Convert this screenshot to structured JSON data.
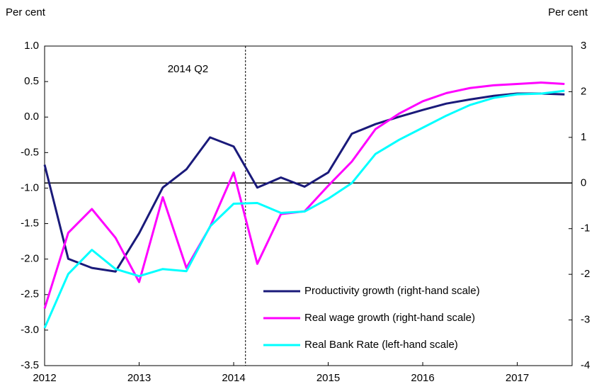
{
  "chart_data": {
    "type": "line",
    "y_label": "Per cent",
    "y2_label": "Per cent",
    "x": [
      2012,
      2012.25,
      2012.5,
      2012.75,
      2013,
      2013.25,
      2013.5,
      2013.75,
      2014,
      2014.25,
      2014.5,
      2014.75,
      2015,
      2015.25,
      2015.5,
      2015.75,
      2016,
      2016.25,
      2016.5,
      2016.75,
      2017,
      2017.25,
      2017.5
    ],
    "xlim": [
      2012,
      2017.58
    ],
    "xticks": [
      2012,
      2013,
      2014,
      2015,
      2016,
      2017
    ],
    "ylim": [
      -3.5,
      1.0
    ],
    "yticks": [
      {
        "value": 1.0,
        "label": "1.0"
      },
      0.5,
      {
        "value": 0.0,
        "label": "0.0"
      },
      -0.5,
      {
        "value": -1.0,
        "label": "-1.0"
      },
      -1.5,
      {
        "value": -2.0,
        "label": "-2.0"
      },
      -2.5,
      {
        "value": -3.0,
        "label": "-3.0"
      },
      -3.5
    ],
    "y2lim": [
      -4,
      3
    ],
    "y2ticks": [
      3,
      2,
      1,
      0,
      -1,
      -2,
      -3,
      -4
    ],
    "zero_line_axis": "y2",
    "vline": {
      "x": 2014.125,
      "label": "2014 Q2"
    },
    "legend": "lower right",
    "series": [
      {
        "name": "Productivity growth (right-hand scale)",
        "color": "#1a1a7a",
        "axis": "y2",
        "values": [
          0.4,
          -1.66,
          -1.86,
          -1.94,
          -1.1,
          -0.1,
          0.3,
          1.0,
          0.8,
          -0.1,
          0.12,
          -0.08,
          0.23,
          1.08,
          1.29,
          1.45,
          1.6,
          1.74,
          1.83,
          1.91,
          1.96,
          1.96,
          1.94
        ]
      },
      {
        "name": "Real wage growth (right-hand scale)",
        "color": "#ff00ff",
        "axis": "y2",
        "values": [
          -2.75,
          -1.09,
          -0.57,
          -1.2,
          -2.17,
          -0.31,
          -1.86,
          -0.96,
          0.23,
          -1.77,
          -0.68,
          -0.62,
          -0.06,
          0.47,
          1.18,
          1.52,
          1.79,
          1.97,
          2.08,
          2.14,
          2.17,
          2.2,
          2.17
        ]
      },
      {
        "name": "Real Bank Rate (left-hand scale)",
        "color": "#00ffff",
        "axis": "y",
        "values": [
          -2.97,
          -2.21,
          -1.87,
          -2.14,
          -2.24,
          -2.14,
          -2.17,
          -1.54,
          -1.22,
          -1.21,
          -1.35,
          -1.33,
          -1.15,
          -0.93,
          -0.52,
          -0.32,
          -0.15,
          0.02,
          0.17,
          0.27,
          0.32,
          0.33,
          0.37
        ]
      }
    ]
  }
}
